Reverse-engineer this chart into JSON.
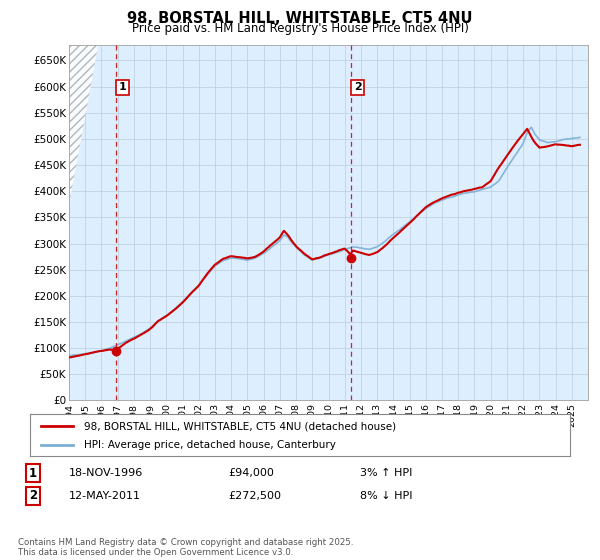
{
  "title": "98, BORSTAL HILL, WHITSTABLE, CT5 4NU",
  "subtitle": "Price paid vs. HM Land Registry's House Price Index (HPI)",
  "ylim": [
    0,
    680000
  ],
  "yticks": [
    0,
    50000,
    100000,
    150000,
    200000,
    250000,
    300000,
    350000,
    400000,
    450000,
    500000,
    550000,
    600000,
    650000
  ],
  "ytick_labels": [
    "£0",
    "£50K",
    "£100K",
    "£150K",
    "£200K",
    "£250K",
    "£300K",
    "£350K",
    "£400K",
    "£450K",
    "£500K",
    "£550K",
    "£600K",
    "£650K"
  ],
  "xlim_start": 1994.0,
  "xlim_end": 2026.0,
  "hpi_color": "#7bafd4",
  "price_color": "#cc0000",
  "marker_color": "#cc0000",
  "dashed_line_color": "#cc0000",
  "chart_bg_color": "#ddeeff",
  "sale1_x": 1996.88,
  "sale1_y": 94000,
  "sale1_label": "1",
  "sale2_x": 2011.36,
  "sale2_y": 272500,
  "sale2_label": "2",
  "legend_label1": "98, BORSTAL HILL, WHITSTABLE, CT5 4NU (detached house)",
  "legend_label2": "HPI: Average price, detached house, Canterbury",
  "annotation1_box": "1",
  "annotation1_date": "18-NOV-1996",
  "annotation1_price": "£94,000",
  "annotation1_hpi": "3% ↑ HPI",
  "annotation2_box": "2",
  "annotation2_date": "12-MAY-2011",
  "annotation2_price": "£272,500",
  "annotation2_hpi": "8% ↓ HPI",
  "footer": "Contains HM Land Registry data © Crown copyright and database right 2025.\nThis data is licensed under the Open Government Licence v3.0.",
  "bg_color": "#ffffff",
  "grid_color": "#bbccdd",
  "hpi_anchors_x": [
    1994.0,
    1994.5,
    1995.0,
    1995.5,
    1996.0,
    1996.5,
    1997.0,
    1997.5,
    1998.0,
    1998.5,
    1999.0,
    1999.5,
    2000.0,
    2000.5,
    2001.0,
    2001.5,
    2002.0,
    2002.5,
    2003.0,
    2003.5,
    2004.0,
    2004.5,
    2005.0,
    2005.5,
    2006.0,
    2006.5,
    2007.0,
    2007.25,
    2007.5,
    2007.75,
    2008.0,
    2008.5,
    2009.0,
    2009.5,
    2010.0,
    2010.5,
    2011.0,
    2011.5,
    2012.0,
    2012.5,
    2013.0,
    2013.5,
    2014.0,
    2014.5,
    2015.0,
    2015.5,
    2016.0,
    2016.5,
    2017.0,
    2017.5,
    2018.0,
    2018.5,
    2019.0,
    2019.5,
    2020.0,
    2020.5,
    2021.0,
    2021.5,
    2022.0,
    2022.25,
    2022.5,
    2022.75,
    2023.0,
    2023.5,
    2024.0,
    2024.5,
    2025.0,
    2025.5
  ],
  "hpi_anchors_y": [
    85000,
    87000,
    90000,
    93000,
    97000,
    101000,
    108000,
    115000,
    122000,
    130000,
    140000,
    153000,
    163000,
    175000,
    188000,
    205000,
    220000,
    240000,
    258000,
    268000,
    272000,
    270000,
    268000,
    272000,
    280000,
    292000,
    305000,
    315000,
    310000,
    300000,
    292000,
    278000,
    268000,
    272000,
    278000,
    283000,
    290000,
    295000,
    293000,
    290000,
    295000,
    305000,
    318000,
    330000,
    342000,
    355000,
    368000,
    378000,
    385000,
    390000,
    395000,
    398000,
    400000,
    405000,
    408000,
    420000,
    445000,
    468000,
    490000,
    510000,
    520000,
    505000,
    495000,
    490000,
    492000,
    495000,
    498000,
    500000
  ],
  "prop_anchors_x": [
    1994.0,
    1994.5,
    1995.0,
    1995.5,
    1996.0,
    1996.5,
    1996.88,
    1997.5,
    1998.0,
    1998.5,
    1999.0,
    1999.5,
    2000.0,
    2000.5,
    2001.0,
    2001.5,
    2002.0,
    2002.5,
    2003.0,
    2003.5,
    2004.0,
    2004.5,
    2005.0,
    2005.5,
    2006.0,
    2006.5,
    2007.0,
    2007.25,
    2007.5,
    2007.75,
    2008.0,
    2008.5,
    2009.0,
    2009.5,
    2010.0,
    2010.5,
    2011.0,
    2011.36,
    2011.5,
    2012.0,
    2012.5,
    2013.0,
    2013.5,
    2014.0,
    2014.5,
    2015.0,
    2015.5,
    2016.0,
    2016.5,
    2017.0,
    2017.5,
    2018.0,
    2018.5,
    2019.0,
    2019.5,
    2020.0,
    2020.5,
    2021.0,
    2021.5,
    2022.0,
    2022.25,
    2022.5,
    2022.75,
    2023.0,
    2023.5,
    2024.0,
    2024.5,
    2025.0,
    2025.5
  ],
  "prop_anchors_y": [
    82000,
    84000,
    87000,
    90000,
    93000,
    96000,
    94000,
    108000,
    115000,
    123000,
    133000,
    148000,
    158000,
    170000,
    184000,
    200000,
    216000,
    238000,
    256000,
    267000,
    272000,
    270000,
    268000,
    272000,
    282000,
    295000,
    308000,
    320000,
    312000,
    300000,
    290000,
    275000,
    264000,
    268000,
    273000,
    278000,
    284000,
    272500,
    280000,
    276000,
    272000,
    278000,
    290000,
    305000,
    318000,
    332000,
    347000,
    362000,
    371000,
    378000,
    384000,
    388000,
    392000,
    396000,
    400000,
    412000,
    438000,
    460000,
    482000,
    502000,
    512000,
    496000,
    484000,
    476000,
    478000,
    482000,
    480000,
    478000,
    480000
  ]
}
